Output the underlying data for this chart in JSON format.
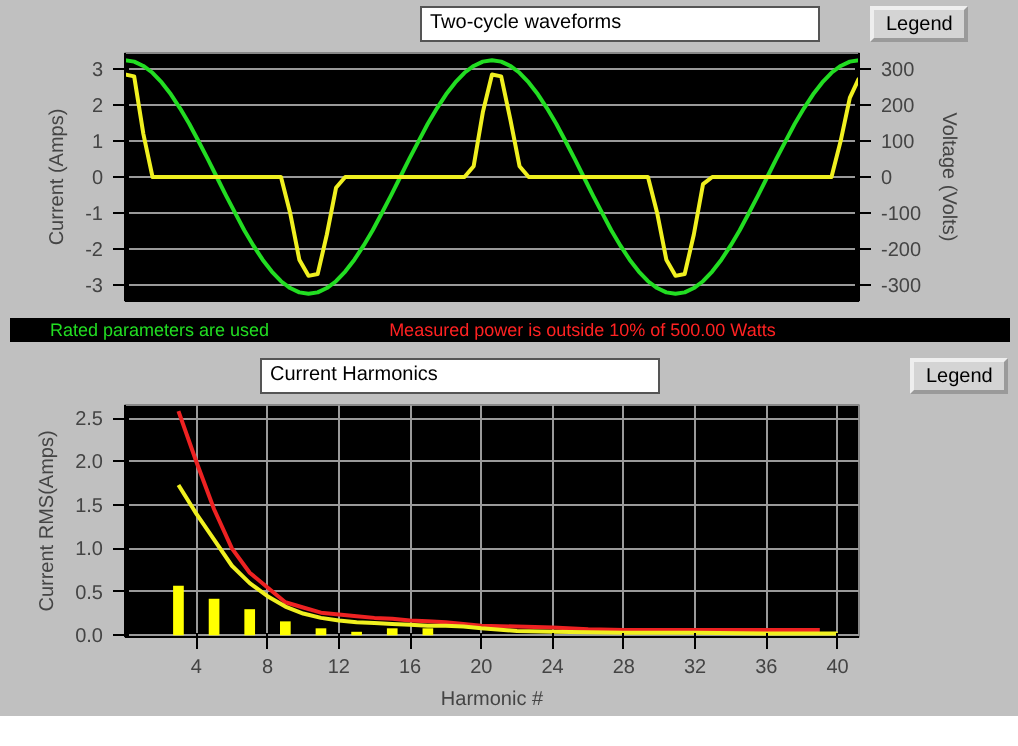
{
  "chart_data": [
    {
      "type": "line",
      "title": "Two-cycle waveforms",
      "ylabel": "Current (Amps)",
      "y2label": "Voltage (Volts)",
      "annotations": [
        "Legend",
        "Rated parameters are used",
        "Measured power is outside 10% of 500.00 Watts"
      ],
      "categories": [
        null,
        null,
        null,
        null,
        null,
        null,
        null,
        null,
        null,
        null,
        null,
        null,
        null,
        null,
        null,
        null,
        null,
        null,
        null,
        null,
        null,
        null,
        null,
        null,
        null,
        null,
        null,
        null,
        null,
        null,
        null,
        null,
        null,
        null,
        null,
        null,
        null,
        null,
        null,
        null,
        null,
        null,
        null,
        null,
        null,
        null,
        null,
        null,
        null,
        null,
        null,
        null,
        null,
        null,
        null,
        null,
        null,
        null,
        null,
        null,
        null,
        null,
        null,
        null,
        null,
        null,
        null,
        null,
        null,
        null,
        null,
        null,
        null,
        null,
        null,
        null,
        null,
        null,
        null,
        null,
        null
      ],
      "series": [
        {
          "color": "#22dd22",
          "axis": "y2",
          "values": [
            325,
            321,
            309,
            290,
            263,
            230,
            191,
            148,
            100,
            51,
            0,
            -51,
            -100,
            -148,
            -191,
            -230,
            -263,
            -290,
            -309,
            -321,
            -325,
            -321,
            -309,
            -290,
            -263,
            -230,
            -191,
            -148,
            -100,
            -51,
            0,
            51,
            100,
            148,
            191,
            230,
            263,
            290,
            309,
            321,
            325,
            321,
            309,
            290,
            263,
            230,
            191,
            148,
            100,
            51,
            0,
            -51,
            -100,
            -148,
            -191,
            -230,
            -263,
            -290,
            -309,
            -321,
            -325,
            -321,
            -309,
            -290,
            -263,
            -230,
            -191,
            -148,
            -100,
            -51,
            0,
            51,
            100,
            148,
            191,
            230,
            263,
            290,
            309,
            321,
            325
          ]
        },
        {
          "color": "#f0f020",
          "values": [
            2.85,
            2.8,
            1.2,
            0,
            0,
            0,
            0,
            0,
            0,
            0,
            0,
            0,
            0,
            0,
            0,
            0,
            0,
            0,
            -1.0,
            -2.3,
            -2.75,
            -2.7,
            -1.6,
            -0.3,
            0,
            0,
            0,
            0,
            0,
            0,
            0,
            0,
            0,
            0,
            0,
            0,
            0,
            0,
            0.3,
            1.8,
            2.85,
            2.8,
            1.6,
            0.3,
            0,
            0,
            0,
            0,
            0,
            0,
            0,
            0,
            0,
            0,
            0,
            0,
            0,
            0,
            -1.0,
            -2.3,
            -2.75,
            -2.7,
            -1.6,
            -0.2,
            0,
            0,
            0,
            0,
            0,
            0,
            0,
            0,
            0,
            0,
            0,
            0,
            0,
            0,
            1.0,
            2.2,
            2.75
          ]
        }
      ],
      "ylim": [
        -3.45,
        3.45
      ],
      "yticks": [
        -3,
        -2,
        -1,
        0,
        1,
        2,
        3
      ],
      "y2lim": [
        -345,
        345
      ],
      "y2ticks": [
        -300,
        -200,
        -100,
        0,
        100,
        200,
        300
      ],
      "grid": "y",
      "tick_labels": "y"
    },
    {
      "type": "line",
      "title": "Current Harmonics",
      "xlabel": "Harmonic #",
      "ylabel": "Current RMS(Amps)",
      "annotations": [
        "Legend"
      ],
      "series": [
        {
          "type": "bar",
          "color": "#ffff00",
          "x": [
            3,
            5,
            7,
            9,
            11,
            13,
            15,
            17
          ],
          "values": [
            0.57,
            0.42,
            0.3,
            0.16,
            0.08,
            0.04,
            0.08,
            0.08
          ]
        },
        {
          "color": "#ee2222",
          "x": [
            3,
            4,
            5,
            6,
            7,
            8,
            9,
            10,
            11,
            12,
            13,
            14,
            15,
            16,
            17,
            18,
            19,
            20,
            22,
            24,
            26,
            28,
            30,
            32,
            34,
            36,
            38,
            39
          ],
          "values": [
            2.58,
            2.0,
            1.45,
            1.0,
            0.72,
            0.55,
            0.38,
            0.32,
            0.26,
            0.24,
            0.22,
            0.2,
            0.19,
            0.17,
            0.16,
            0.15,
            0.13,
            0.11,
            0.1,
            0.09,
            0.07,
            0.06,
            0.06,
            0.06,
            0.06,
            0.06,
            0.06,
            0.06
          ]
        },
        {
          "color": "#f0f020",
          "x": [
            3,
            4,
            5,
            6,
            7,
            8,
            9,
            10,
            11,
            12,
            13,
            14,
            15,
            16,
            17,
            18,
            19,
            20,
            22,
            24,
            28,
            32,
            36,
            40
          ],
          "values": [
            1.73,
            1.4,
            1.1,
            0.8,
            0.6,
            0.45,
            0.33,
            0.25,
            0.2,
            0.17,
            0.15,
            0.14,
            0.13,
            0.12,
            0.11,
            0.11,
            0.1,
            0.08,
            0.05,
            0.04,
            0.03,
            0.03,
            0.02,
            0.02
          ]
        }
      ],
      "xlim": [
        0,
        41.2
      ],
      "xticks": [
        4,
        8,
        12,
        16,
        20,
        24,
        28,
        32,
        36,
        40
      ],
      "ylim": [
        -0.02,
        2.65
      ],
      "yticks": [
        {
          "value": 0,
          "label": "0.0"
        },
        {
          "value": 0.5,
          "label": "0.5"
        },
        {
          "value": 1,
          "label": "1.0"
        },
        {
          "value": 1.5,
          "label": "1.5"
        },
        {
          "value": 2,
          "label": "2.0"
        },
        {
          "value": 2.5,
          "label": "2.5"
        }
      ],
      "grid": true
    }
  ]
}
